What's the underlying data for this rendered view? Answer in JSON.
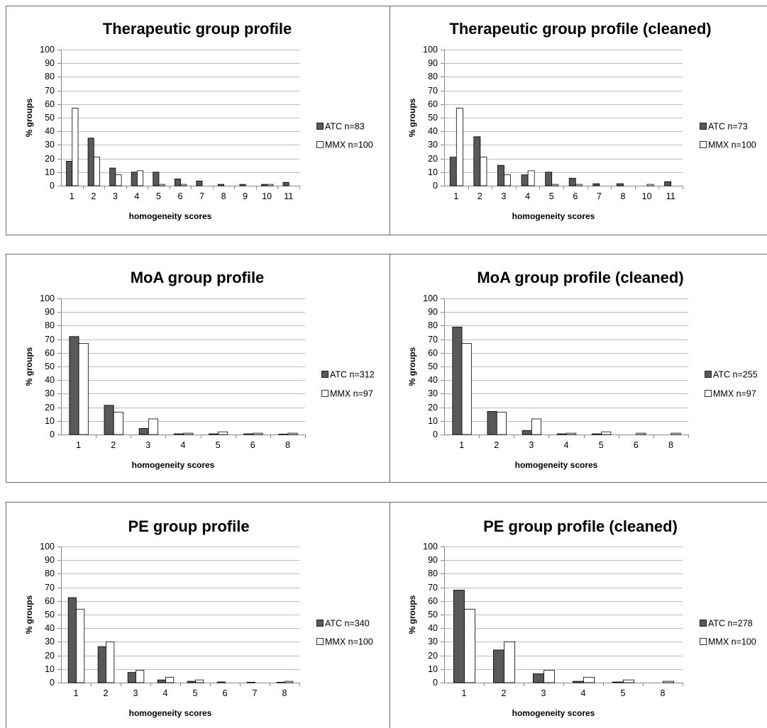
{
  "colors": {
    "atc": "#595959",
    "mmx": "#ffffff",
    "bar_stroke": "#000000"
  },
  "chart_data": [
    {
      "type": "bar",
      "title": "Therapeutic group profile",
      "xlabel": "homogeneity scores",
      "ylabel": "% groups",
      "ylim": [
        0,
        100
      ],
      "yticks": [
        0,
        10,
        20,
        30,
        40,
        50,
        60,
        70,
        80,
        90,
        100
      ],
      "grid": true,
      "legend_position": "right",
      "categories": [
        "1",
        "2",
        "3",
        "4",
        "5",
        "6",
        "7",
        "8",
        "9",
        "10",
        "11"
      ],
      "series": [
        {
          "name": "ATC n=83",
          "values": [
            18,
            35,
            13,
            10,
            10,
            5,
            3.5,
            1,
            1,
            1,
            2.5
          ]
        },
        {
          "name": "MMX n=100",
          "values": [
            57,
            21,
            8,
            11,
            1,
            1,
            0,
            0,
            0,
            1,
            0
          ]
        }
      ]
    },
    {
      "type": "bar",
      "title": "Therapeutic group profile (cleaned)",
      "xlabel": "homogeneity scores",
      "ylabel": "% groups",
      "ylim": [
        0,
        100
      ],
      "yticks": [
        0,
        10,
        20,
        30,
        40,
        50,
        60,
        70,
        80,
        90,
        100
      ],
      "grid": true,
      "legend_position": "right",
      "categories": [
        "1",
        "2",
        "3",
        "4",
        "5",
        "6",
        "7",
        "8",
        "10",
        "11"
      ],
      "series": [
        {
          "name": "ATC n=73",
          "values": [
            21,
            36,
            15,
            8,
            10,
            5.5,
            1.5,
            1.5,
            0,
            3
          ]
        },
        {
          "name": "MMX n=100",
          "values": [
            57,
            21,
            8,
            11,
            1,
            1,
            0,
            0,
            1,
            0
          ]
        }
      ]
    },
    {
      "type": "bar",
      "title": "MoA group profile",
      "xlabel": "homogeneity scores",
      "ylabel": "% groups",
      "ylim": [
        0,
        100
      ],
      "yticks": [
        0,
        10,
        20,
        30,
        40,
        50,
        60,
        70,
        80,
        90,
        100
      ],
      "grid": true,
      "legend_position": "right",
      "categories": [
        "1",
        "2",
        "3",
        "4",
        "5",
        "6",
        "8"
      ],
      "series": [
        {
          "name": "ATC n=312",
          "values": [
            72,
            21.5,
            4.5,
            0.5,
            0.5,
            0.5,
            0.3
          ]
        },
        {
          "name": "MMX n=97",
          "values": [
            67,
            16.5,
            11.5,
            1,
            2,
            1,
            1
          ]
        }
      ]
    },
    {
      "type": "bar",
      "title": "MoA group profile (cleaned)",
      "xlabel": "homogeneity scores",
      "ylabel": "% groups",
      "ylim": [
        0,
        100
      ],
      "yticks": [
        0,
        10,
        20,
        30,
        40,
        50,
        60,
        70,
        80,
        90,
        100
      ],
      "grid": true,
      "legend_position": "right",
      "categories": [
        "1",
        "2",
        "3",
        "4",
        "5",
        "6",
        "8"
      ],
      "series": [
        {
          "name": "ATC n=255",
          "values": [
            79,
            17,
            3,
            0.5,
            0.5,
            0,
            0
          ]
        },
        {
          "name": "MMX n=97",
          "values": [
            67,
            16.5,
            11.5,
            1,
            2,
            1,
            1
          ]
        }
      ]
    },
    {
      "type": "bar",
      "title": "PE group profile",
      "xlabel": "homogeneity scores",
      "ylabel": "% groups",
      "ylim": [
        0,
        100
      ],
      "yticks": [
        0,
        10,
        20,
        30,
        40,
        50,
        60,
        70,
        80,
        90,
        100
      ],
      "grid": true,
      "legend_position": "right",
      "categories": [
        "1",
        "2",
        "3",
        "4",
        "5",
        "6",
        "7",
        "8"
      ],
      "series": [
        {
          "name": "ATC n=340",
          "values": [
            62.5,
            26.5,
            7.5,
            2,
            1,
            0.5,
            0.3,
            0.3
          ]
        },
        {
          "name": "MMX n=100",
          "values": [
            54,
            30,
            9,
            4,
            2,
            0,
            0,
            1
          ]
        }
      ]
    },
    {
      "type": "bar",
      "title": "PE group profile (cleaned)",
      "xlabel": "homogeneity scores",
      "ylabel": "% groups",
      "ylim": [
        0,
        100
      ],
      "yticks": [
        0,
        10,
        20,
        30,
        40,
        50,
        60,
        70,
        80,
        90,
        100
      ],
      "grid": true,
      "legend_position": "right",
      "categories": [
        "1",
        "2",
        "3",
        "4",
        "5",
        "8"
      ],
      "series": [
        {
          "name": "ATC n=278",
          "values": [
            68,
            24,
            6.5,
            1,
            0.5,
            0
          ]
        },
        {
          "name": "MMX n=100",
          "values": [
            54,
            30,
            9,
            4,
            2,
            1
          ]
        }
      ]
    }
  ]
}
